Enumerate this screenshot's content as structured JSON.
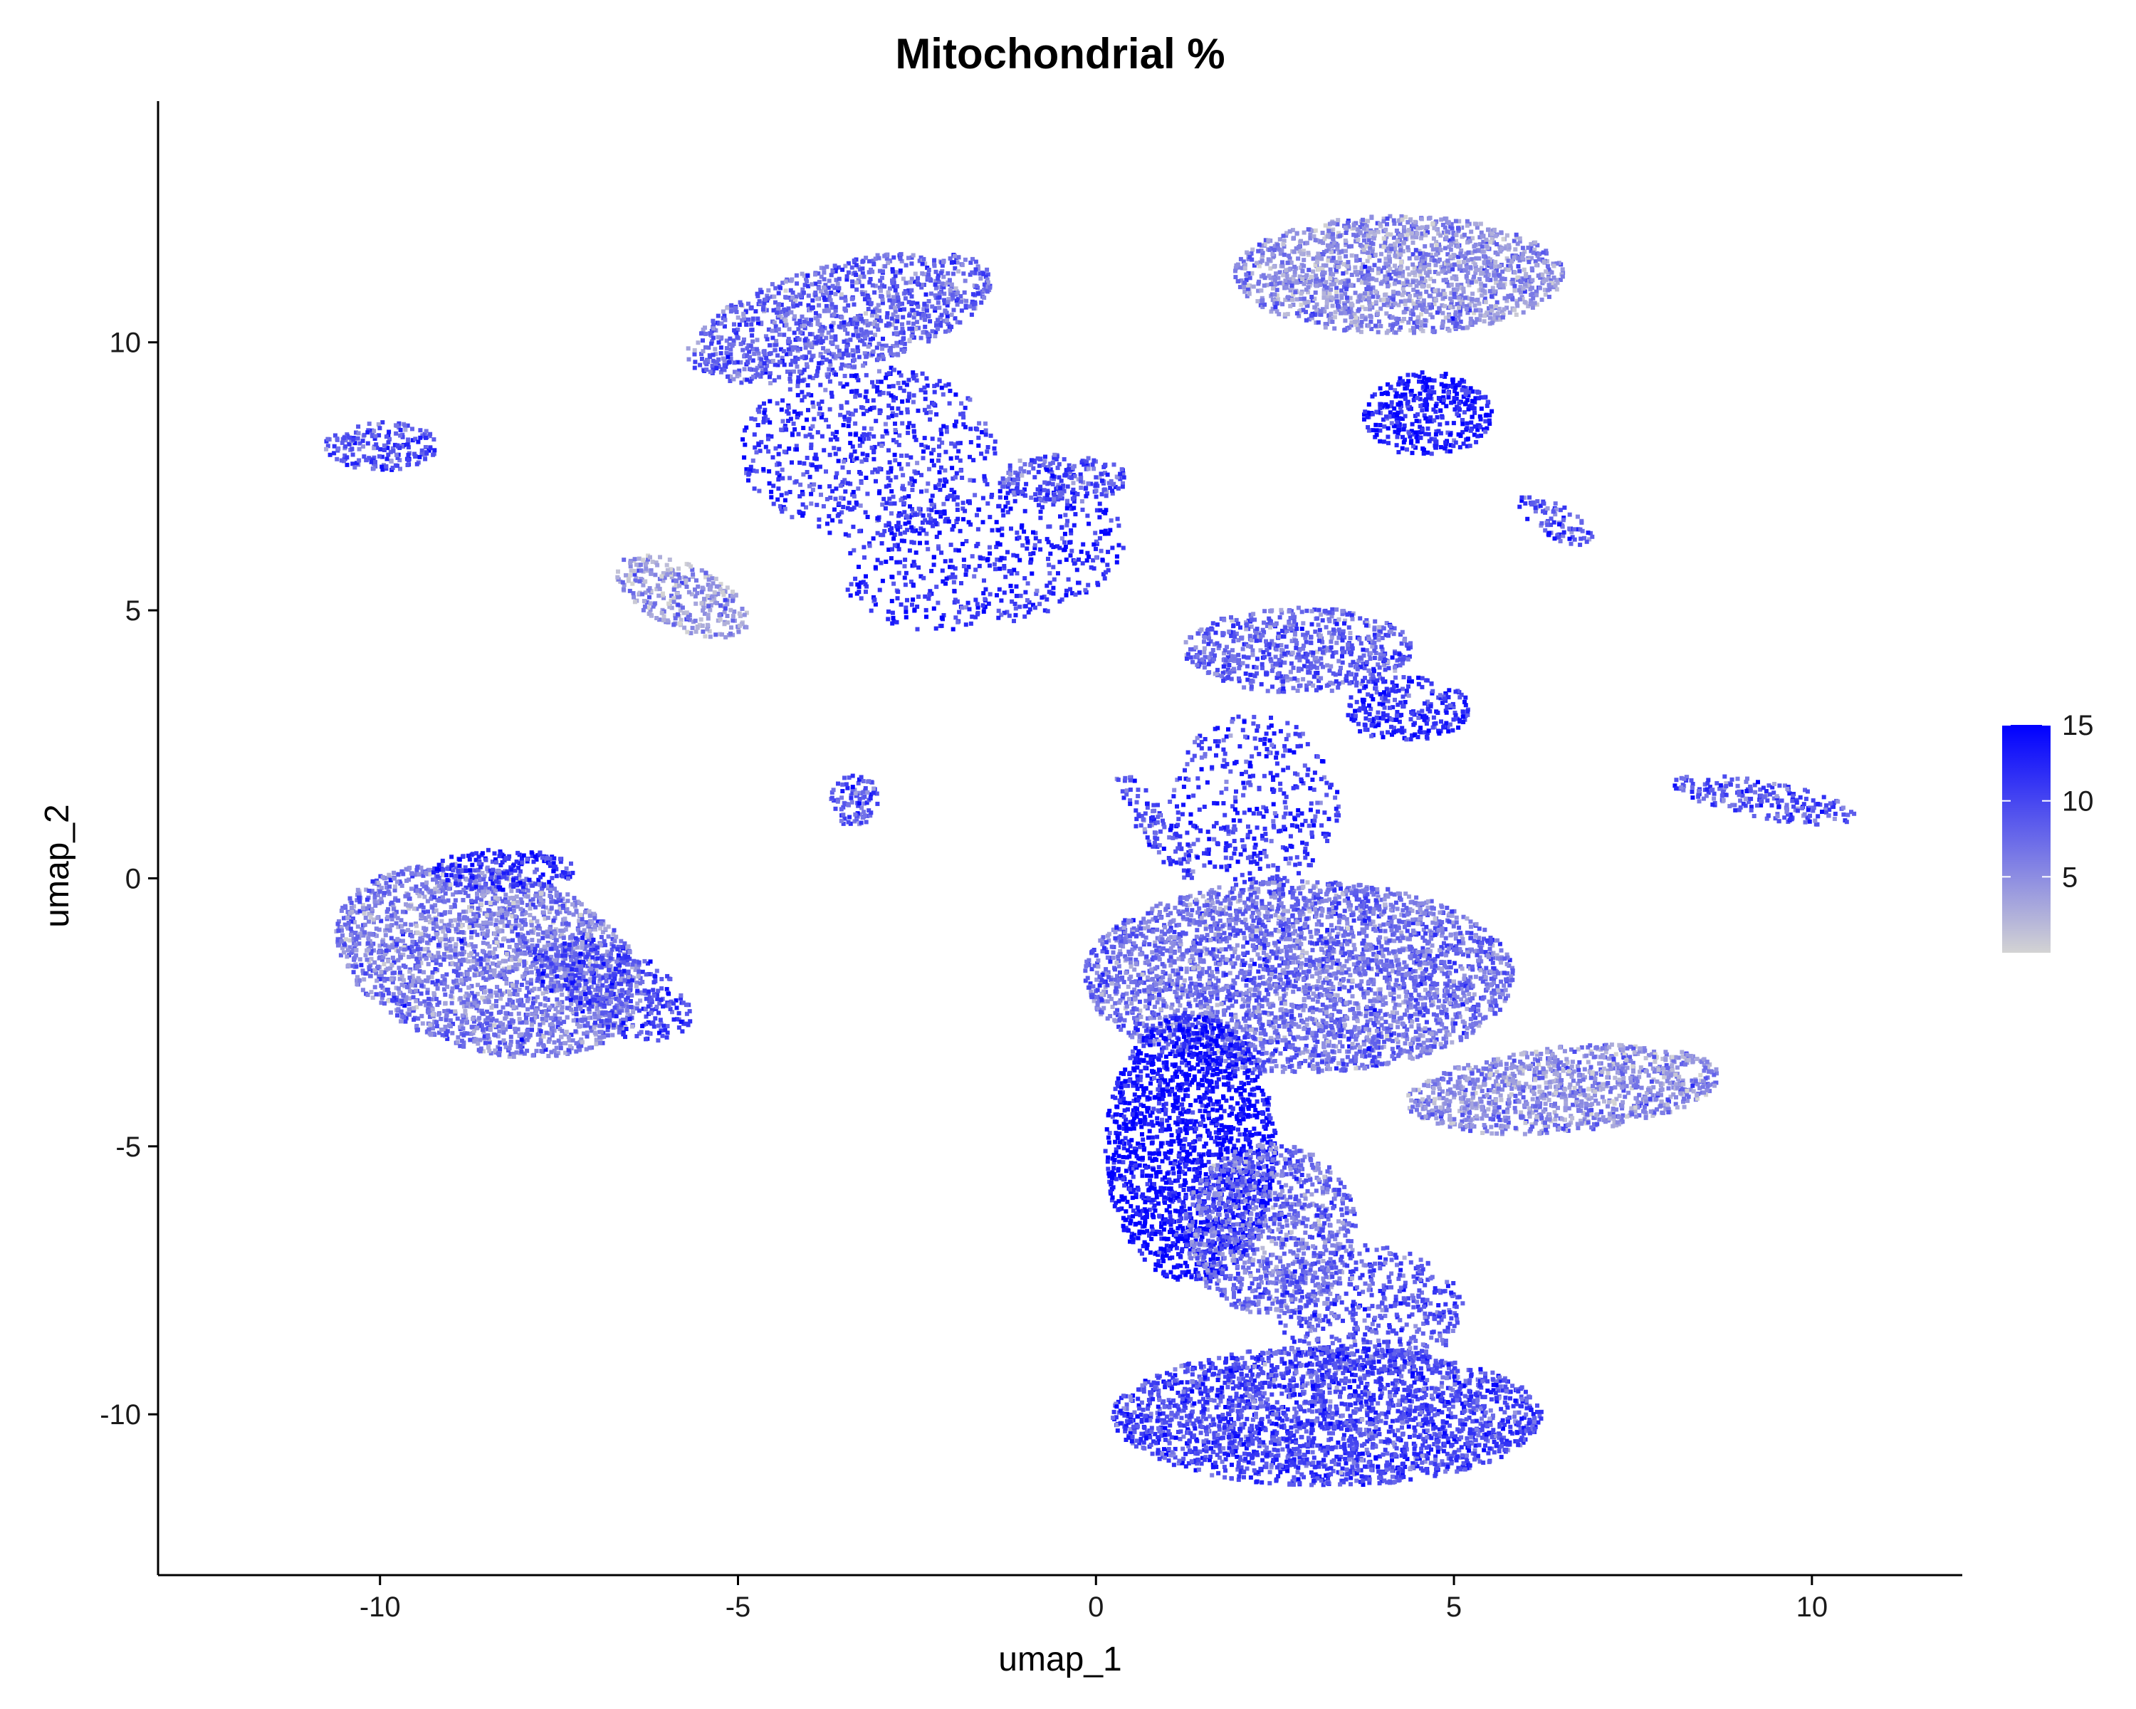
{
  "chart_data": {
    "type": "scatter",
    "title": "Mitochondrial %",
    "xlabel": "umap_1",
    "ylabel": "umap_2",
    "xlim": [
      -13.1,
      12.1
    ],
    "ylim": [
      -13.0,
      14.5
    ],
    "x_ticks": [
      -10,
      -5,
      0,
      5,
      10
    ],
    "y_ticks": [
      -10,
      -5,
      0,
      5,
      10
    ],
    "grid": false,
    "legend_position": "right",
    "color_scale": {
      "low_color": "#d3d3d3",
      "high_color": "#0000ff",
      "min": 0,
      "max": 15,
      "breaks": [
        5,
        10,
        15
      ]
    },
    "clusters": [
      {
        "center": [
          -8.5,
          -1.5
        ],
        "radius": [
          2.2,
          1.7
        ],
        "angle": -15,
        "value": 6,
        "density": 1.0
      },
      {
        "center": [
          -6.8,
          -2.0
        ],
        "radius": [
          1.2,
          0.8
        ],
        "angle": -25,
        "value": 10,
        "density": 0.6
      },
      {
        "center": [
          -8.3,
          0.2
        ],
        "radius": [
          1.0,
          0.4
        ],
        "angle": 0,
        "value": 12,
        "density": 0.7
      },
      {
        "center": [
          -10.0,
          8.1
        ],
        "radius": [
          0.8,
          0.45
        ],
        "angle": 0,
        "value": 9,
        "density": 0.8
      },
      {
        "center": [
          -3.6,
          10.5
        ],
        "radius": [
          2.2,
          1.0
        ],
        "angle": 15,
        "value": 8,
        "density": 0.8
      },
      {
        "center": [
          -3.2,
          8.0
        ],
        "radius": [
          1.8,
          1.6
        ],
        "angle": 0,
        "value": 11,
        "density": 0.35
      },
      {
        "center": [
          -5.8,
          5.3
        ],
        "radius": [
          1.0,
          0.6
        ],
        "angle": -25,
        "value": 4,
        "density": 0.8
      },
      {
        "center": [
          -1.6,
          6.0
        ],
        "radius": [
          2.0,
          1.3
        ],
        "angle": 10,
        "value": 12,
        "density": 0.3
      },
      {
        "center": [
          -0.5,
          7.5
        ],
        "radius": [
          0.9,
          0.45
        ],
        "angle": 0,
        "value": 9,
        "density": 0.8
      },
      {
        "center": [
          -3.4,
          1.5
        ],
        "radius": [
          0.35,
          0.5
        ],
        "angle": 0,
        "value": 9,
        "density": 0.8
      },
      {
        "center": [
          4.2,
          11.3
        ],
        "radius": [
          2.3,
          1.1
        ],
        "angle": 0,
        "value": 5,
        "density": 1.0
      },
      {
        "center": [
          4.6,
          8.7
        ],
        "radius": [
          0.9,
          0.8
        ],
        "angle": 0,
        "value": 13,
        "density": 0.8
      },
      {
        "center": [
          6.4,
          6.7
        ],
        "radius": [
          0.6,
          0.3
        ],
        "angle": -30,
        "value": 9,
        "density": 0.7
      },
      {
        "center": [
          2.8,
          4.3
        ],
        "radius": [
          1.6,
          0.8
        ],
        "angle": 0,
        "value": 8,
        "density": 0.8
      },
      {
        "center": [
          4.3,
          3.2
        ],
        "radius": [
          0.9,
          0.6
        ],
        "angle": 0,
        "value": 12,
        "density": 0.7
      },
      {
        "center": [
          2.2,
          1.5
        ],
        "radius": [
          1.2,
          1.6
        ],
        "angle": 0,
        "value": 11,
        "density": 0.3
      },
      {
        "center": [
          2.8,
          -1.8
        ],
        "radius": [
          3.0,
          1.8
        ],
        "angle": 0,
        "value": 7,
        "density": 1.0
      },
      {
        "center": [
          6.5,
          -3.9
        ],
        "radius": [
          2.2,
          0.8
        ],
        "angle": 5,
        "value": 5,
        "density": 1.0
      },
      {
        "center": [
          1.3,
          -5.0
        ],
        "radius": [
          1.2,
          2.5
        ],
        "angle": 0,
        "value": 14,
        "density": 0.9
      },
      {
        "center": [
          2.4,
          -6.5
        ],
        "radius": [
          1.2,
          1.6
        ],
        "angle": 0,
        "value": 7,
        "density": 0.8
      },
      {
        "center": [
          3.8,
          -8.0
        ],
        "radius": [
          1.3,
          1.2
        ],
        "angle": 0,
        "value": 9,
        "density": 0.5
      },
      {
        "center": [
          3.2,
          -10.0
        ],
        "radius": [
          3.0,
          1.3
        ],
        "angle": 0,
        "value": 10,
        "density": 1.0
      },
      {
        "center": [
          9.3,
          1.5
        ],
        "radius": [
          1.3,
          0.35
        ],
        "angle": -10,
        "value": 9,
        "density": 0.7
      },
      {
        "center": [
          0.8,
          1.0
        ],
        "radius": [
          0.9,
          0.3
        ],
        "angle": -55,
        "value": 9,
        "density": 0.6
      }
    ]
  }
}
